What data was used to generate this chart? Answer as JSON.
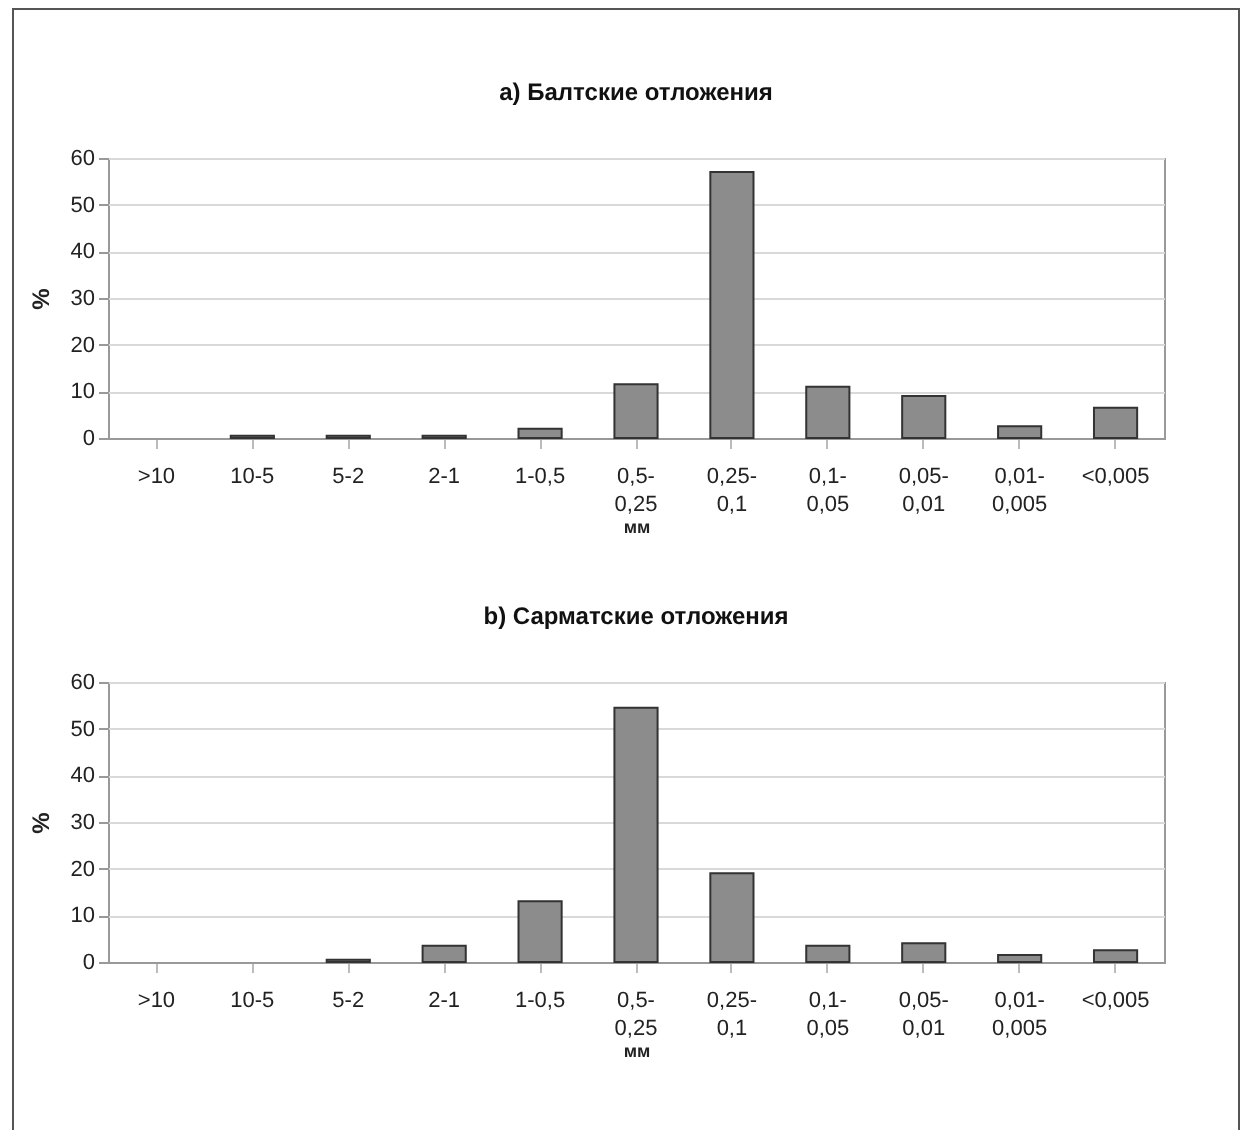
{
  "chart_data": [
    {
      "type": "bar",
      "title": "a) Балтские отложения",
      "xlabel": "мм",
      "ylabel": "%",
      "categories": [
        ">10",
        "10-5",
        "5-2",
        "2-1",
        "1-0,5",
        "0,5-\n0,25",
        "0,25-\n0,1",
        "0,1-\n0,05",
        "0,05-\n0,01",
        "0,01-\n0,005",
        "<0,005"
      ],
      "color": "#8c8c8c",
      "values": [
        0,
        0.5,
        0.5,
        0.5,
        2,
        11.5,
        57,
        11,
        9,
        2.5,
        6.5
      ],
      "ylim": [
        0,
        60
      ],
      "yticks": [
        0,
        10,
        20,
        30,
        40,
        50,
        60
      ],
      "grid": "y"
    },
    {
      "type": "bar",
      "title": "b) Сарматские отложения",
      "xlabel": "мм",
      "ylabel": "%",
      "categories": [
        ">10",
        "10-5",
        "5-2",
        "2-1",
        "1-0,5",
        "0,5-\n0,25",
        "0,25-\n0,1",
        "0,1-\n0,05",
        "0,05-\n0,01",
        "0,01-\n0,005",
        "<0,005"
      ],
      "color": "#8c8c8c",
      "values": [
        0,
        0,
        0.5,
        3.5,
        13,
        54.5,
        19,
        3.5,
        4,
        1.5,
        2.5
      ],
      "ylim": [
        0,
        60
      ],
      "yticks": [
        0,
        10,
        20,
        30,
        40,
        50,
        60
      ],
      "grid": "y"
    }
  ]
}
